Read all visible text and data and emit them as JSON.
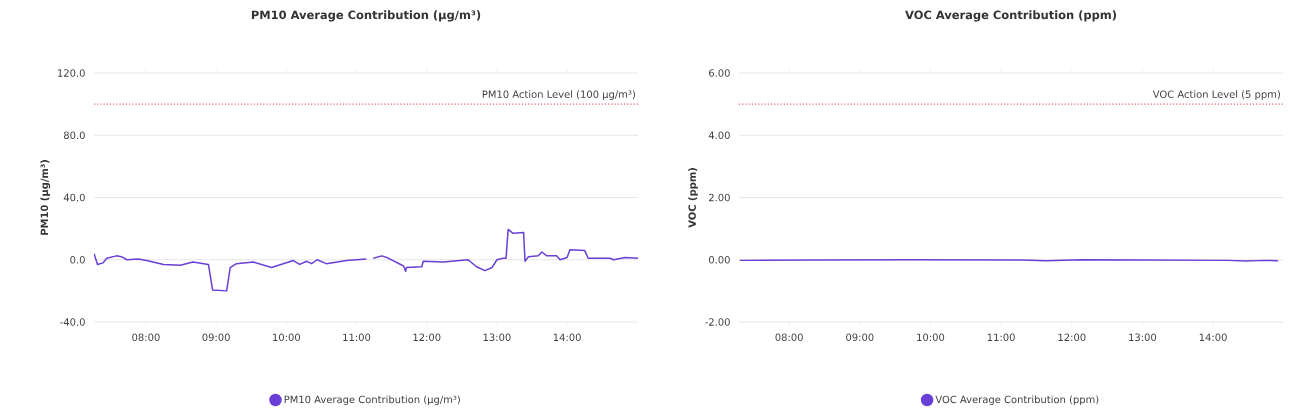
{
  "chart_data": [
    {
      "type": "line",
      "title": "PM10 Average Contribution (µg/m³)",
      "ylabel": "PM10 (µg/m³)",
      "x": [
        7.26,
        7.31,
        7.39,
        7.44,
        7.58,
        7.65,
        7.73,
        7.89,
        8.01,
        8.25,
        8.49,
        8.67,
        8.89,
        8.95,
        9.15,
        9.2,
        9.29,
        9.53,
        9.79,
        10.1,
        10.19,
        10.29,
        10.36,
        10.44,
        10.57,
        10.86,
        11.14,
        11.19,
        11.24,
        11.36,
        11.43,
        11.67,
        11.7,
        11.71,
        11.93,
        11.95,
        12.24,
        12.59,
        12.71,
        12.83,
        12.93,
        13.0,
        13.09,
        13.13,
        13.16,
        13.23,
        13.38,
        13.4,
        13.45,
        13.59,
        13.64,
        13.71,
        13.85,
        13.9,
        14.0,
        14.04,
        14.25,
        14.3,
        14.61,
        14.66,
        14.83,
        15.01
      ],
      "series": [
        {
          "name": "PM10 Average Contribution (µg/m³)",
          "color": "#6a3fd6",
          "values": [
            4,
            -3,
            -2,
            1,
            2.5,
            2,
            0,
            0.5,
            -0.5,
            -3,
            -3.5,
            -1.5,
            -3,
            -19.5,
            -20,
            -5,
            -2.5,
            -1.5,
            -5,
            -0.5,
            -3,
            -1,
            -2.5,
            0,
            -2.5,
            -0.5,
            0.5,
            null,
            1,
            2.5,
            1.5,
            -4,
            -7.5,
            -5,
            -4.5,
            -1,
            -1.5,
            0,
            -4.5,
            -7,
            -5,
            0,
            1,
            1,
            19.5,
            17,
            17.5,
            -1,
            2,
            2.5,
            5,
            2.5,
            2.5,
            0,
            1.5,
            6.5,
            6,
            1,
            1,
            0,
            1.5,
            1
          ]
        }
      ],
      "xlim": [
        7.26,
        15.01
      ],
      "xticks": [
        {
          "value": 8,
          "label": "08:00"
        },
        {
          "value": 9,
          "label": "09:00"
        },
        {
          "value": 10,
          "label": "10:00"
        },
        {
          "value": 11,
          "label": "11:00"
        },
        {
          "value": 12,
          "label": "12:00"
        },
        {
          "value": 13,
          "label": "13:00"
        },
        {
          "value": 14,
          "label": "14:00"
        }
      ],
      "ylim": [
        -40,
        120
      ],
      "yticks": [
        {
          "value": -40,
          "label": "-40.0"
        },
        {
          "value": 0,
          "label": "0.0"
        },
        {
          "value": 40,
          "label": "40.0"
        },
        {
          "value": 80,
          "label": "80.0"
        },
        {
          "value": 120,
          "label": "120.0"
        }
      ],
      "ref_lines": [
        {
          "axis": "y",
          "value": 100,
          "label": "PM10 Action Level (100 µg/m³)",
          "color": "#e06666",
          "line_style": "dotted"
        }
      ],
      "grid": "y",
      "legend": "bottom"
    },
    {
      "type": "line",
      "title": "VOC Average Contribution (ppm)",
      "ylabel": "VOC (ppm)",
      "x": [
        7.3,
        8.37,
        9.71,
        11.29,
        11.64,
        12.13,
        13.03,
        14.2,
        14.46,
        14.73,
        14.92
      ],
      "series": [
        {
          "name": "VOC Average Contribution (ppm)",
          "color": "#6a3fd6",
          "values": [
            -0.02,
            -0.01,
            0.0,
            -0.01,
            -0.03,
            0.0,
            -0.01,
            -0.02,
            -0.04,
            -0.02,
            -0.03
          ]
        }
      ],
      "xlim": [
        7.29,
        14.99
      ],
      "xticks": [
        {
          "value": 8,
          "label": "08:00"
        },
        {
          "value": 9,
          "label": "09:00"
        },
        {
          "value": 10,
          "label": "10:00"
        },
        {
          "value": 11,
          "label": "11:00"
        },
        {
          "value": 12,
          "label": "12:00"
        },
        {
          "value": 13,
          "label": "13:00"
        },
        {
          "value": 14,
          "label": "14:00"
        }
      ],
      "ylim": [
        -2,
        6
      ],
      "yticks": [
        {
          "value": -2,
          "label": "-2.00"
        },
        {
          "value": 0,
          "label": "0.00"
        },
        {
          "value": 2,
          "label": "2.00"
        },
        {
          "value": 4,
          "label": "4.00"
        },
        {
          "value": 6,
          "label": "6.00"
        }
      ],
      "ref_lines": [
        {
          "axis": "y",
          "value": 5,
          "label": "VOC Action Level (5 ppm)",
          "color": "#e06666",
          "line_style": "dotted"
        }
      ],
      "grid": "y",
      "legend": "bottom"
    }
  ]
}
